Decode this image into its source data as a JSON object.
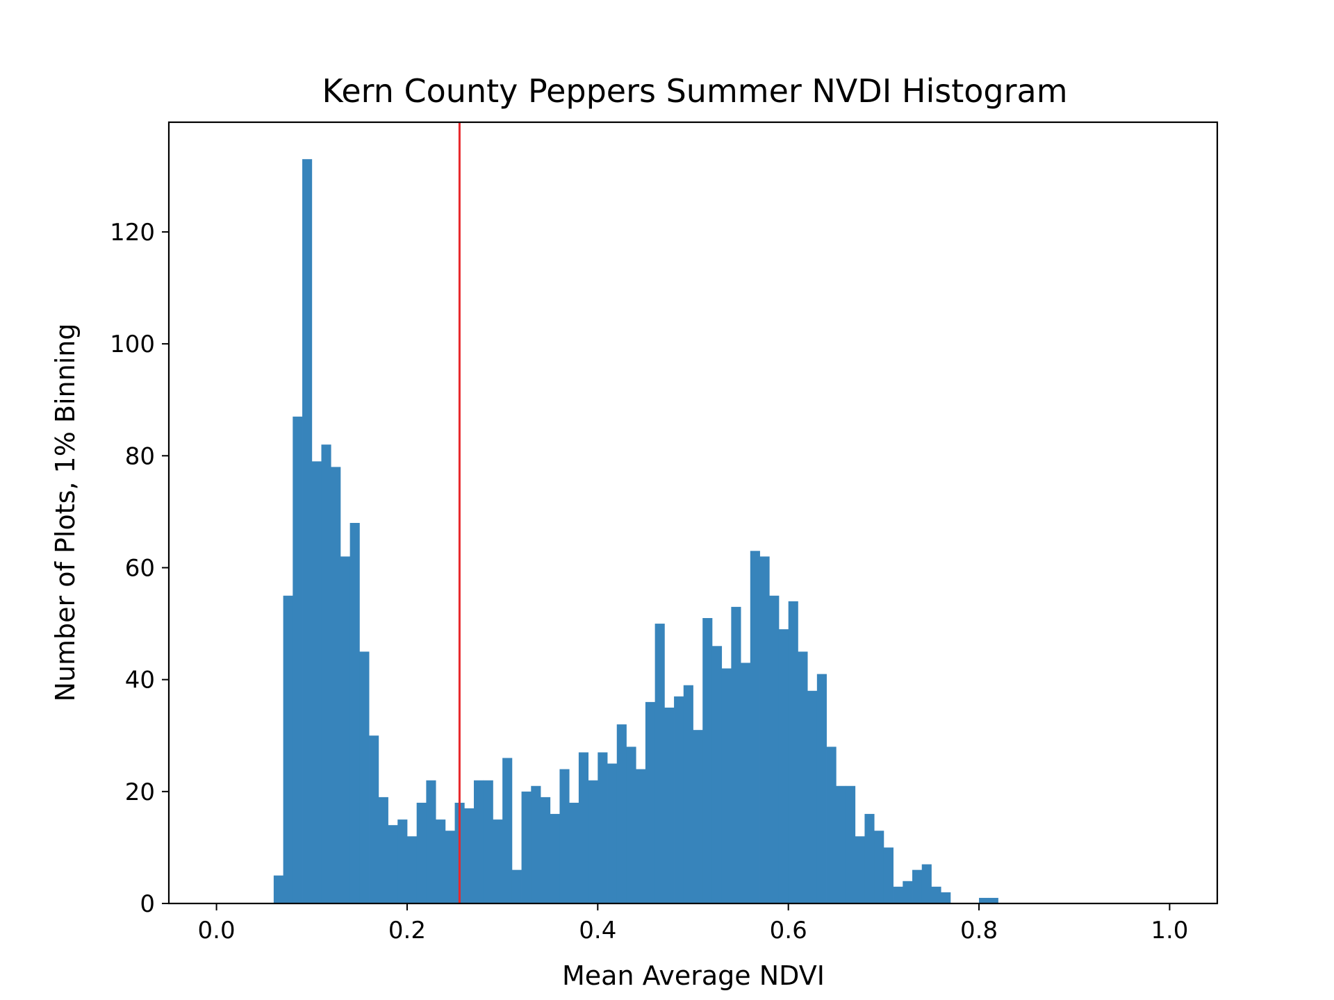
{
  "chart_data": {
    "type": "bar",
    "title": "Kern County Peppers Summer NVDI Histogram",
    "xlabel": "Mean Average NDVI",
    "ylabel": "Number of Plots, 1% Binning",
    "xlim": [
      -0.05,
      1.05
    ],
    "ylim": [
      0,
      139.6
    ],
    "xticks": [
      0.0,
      0.2,
      0.4,
      0.6,
      0.8,
      1.0
    ],
    "xtick_labels": [
      "0.0",
      "0.2",
      "0.4",
      "0.6",
      "0.8",
      "1.0"
    ],
    "yticks": [
      0,
      20,
      40,
      60,
      80,
      100,
      120
    ],
    "ytick_labels": [
      "0",
      "20",
      "40",
      "60",
      "80",
      "100",
      "120"
    ],
    "bin_width": 0.01,
    "bins": [
      0.06,
      0.07,
      0.08,
      0.09,
      0.1,
      0.11,
      0.12,
      0.13,
      0.14,
      0.15,
      0.16,
      0.17,
      0.18,
      0.19,
      0.2,
      0.21,
      0.22,
      0.23,
      0.24,
      0.25,
      0.26,
      0.27,
      0.28,
      0.29,
      0.3,
      0.31,
      0.32,
      0.33,
      0.34,
      0.35,
      0.36,
      0.37,
      0.38,
      0.39,
      0.4,
      0.41,
      0.42,
      0.43,
      0.44,
      0.45,
      0.46,
      0.47,
      0.48,
      0.49,
      0.5,
      0.51,
      0.52,
      0.53,
      0.54,
      0.55,
      0.56,
      0.57,
      0.58,
      0.59,
      0.6,
      0.61,
      0.62,
      0.63,
      0.64,
      0.65,
      0.66,
      0.67,
      0.68,
      0.69,
      0.7,
      0.71,
      0.72,
      0.73,
      0.74,
      0.75,
      0.76,
      0.77,
      0.78,
      0.79,
      0.8,
      0.81
    ],
    "values": [
      5,
      55,
      87,
      133,
      79,
      82,
      78,
      62,
      68,
      45,
      30,
      19,
      14,
      15,
      12,
      18,
      22,
      15,
      13,
      18,
      17,
      22,
      22,
      15,
      26,
      6,
      20,
      21,
      19,
      16,
      24,
      18,
      27,
      22,
      27,
      25,
      32,
      28,
      24,
      36,
      50,
      35,
      37,
      39,
      31,
      51,
      46,
      42,
      53,
      43,
      63,
      62,
      55,
      49,
      54,
      45,
      38,
      41,
      28,
      21,
      21,
      12,
      16,
      13,
      10,
      3,
      4,
      6,
      7,
      3,
      2,
      0,
      0,
      0,
      1,
      1
    ],
    "bar_color": "#3784bb",
    "threshold_line": {
      "x": 0.255,
      "color": "#e8272b"
    },
    "grid": false,
    "legend": "none"
  }
}
